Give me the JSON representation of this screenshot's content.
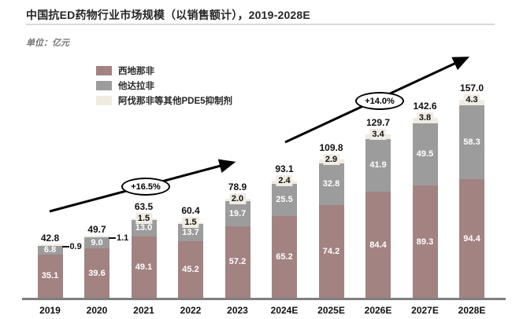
{
  "header": {
    "title": "中国抗ED药物行业市场规模（以销售额计），2019-2028E",
    "unit_label": "单位：亿元"
  },
  "colors": {
    "sildenafil": "#a38282",
    "tadalafil": "#9c9c9c",
    "other_pde5": "#f0ece3",
    "axis": "#7f7f7f",
    "arrow": "#000000"
  },
  "chart_data": {
    "type": "bar",
    "stacked": true,
    "title": "中国抗ED药物行业市场规模（以销售额计），2019-2028E",
    "unit": "亿元",
    "categories": [
      "2019",
      "2020",
      "2021",
      "2022",
      "2023",
      "2024E",
      "2025E",
      "2026E",
      "2027E",
      "2028E"
    ],
    "series": [
      {
        "name": "西地那非",
        "color": "#a38282",
        "values": [
          35.1,
          39.6,
          49.1,
          45.2,
          57.2,
          65.2,
          74.2,
          84.4,
          89.3,
          94.4
        ]
      },
      {
        "name": "他达拉非",
        "color": "#9c9c9c",
        "values": [
          6.8,
          9.0,
          13.0,
          13.7,
          19.7,
          25.5,
          32.8,
          41.9,
          49.5,
          58.3
        ]
      },
      {
        "name": "阿伐那非等其他PDE5抑制剂",
        "color": "#f0ece3",
        "values": [
          0.9,
          1.1,
          1.5,
          1.5,
          2.0,
          2.4,
          2.9,
          3.4,
          3.8,
          4.3
        ]
      }
    ],
    "totals": [
      42.8,
      49.7,
      63.5,
      60.4,
      78.9,
      93.1,
      109.8,
      129.7,
      142.6,
      157.0
    ],
    "annotations": [
      {
        "text": "+16.5%"
      },
      {
        "text": "+14.0%"
      }
    ],
    "legend_position": "upper-left",
    "grid": false,
    "ylim": [
      0,
      160
    ]
  }
}
